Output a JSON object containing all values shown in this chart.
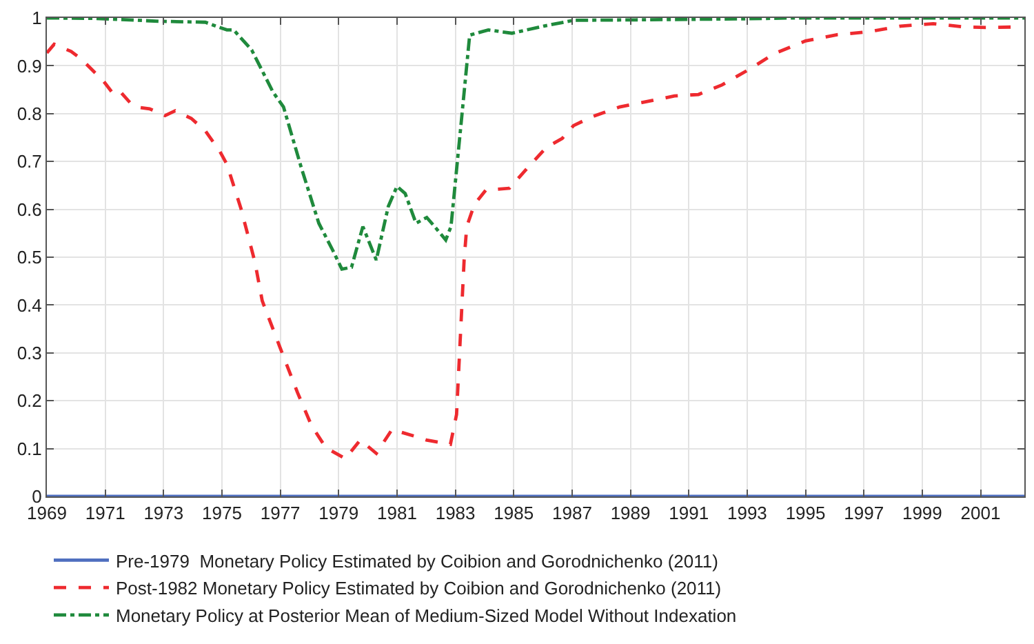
{
  "chart_data": {
    "type": "line",
    "xlim": [
      1969,
      2002.5
    ],
    "ylim": [
      0,
      1
    ],
    "xticks": [
      1969,
      1971,
      1973,
      1975,
      1977,
      1979,
      1981,
      1983,
      1985,
      1987,
      1989,
      1991,
      1993,
      1995,
      1997,
      1999,
      2001
    ],
    "yticks": [
      0,
      0.1,
      0.2,
      0.3,
      0.4,
      0.5,
      0.6,
      0.7,
      0.8,
      0.9,
      1
    ],
    "grid": true,
    "legend": "bottom",
    "marker": "none",
    "series": [
      {
        "name": "Pre-1979  Monetary Policy Estimated by Coibion and Gorodnichenko (2011)",
        "color": "#4f6fbf",
        "line_style": "solid",
        "x": [
          1969,
          1985,
          2002.5
        ],
        "values": [
          0,
          0,
          0
        ]
      },
      {
        "name": "Post-1982 Monetary Policy Estimated by Coibion and Gorodnichenko (2011)",
        "color": "#ee2a2f",
        "line_style": "dashed",
        "x": [
          1969,
          1969.25,
          1969.83,
          1970.18,
          1970.94,
          1971.29,
          1971.53,
          1971.88,
          1972.05,
          1972.52,
          1973.05,
          1973.4,
          1973.7,
          1973.95,
          1974.43,
          1974.93,
          1975.17,
          1975.65,
          1976.13,
          1976.38,
          1976.98,
          1977.59,
          1978.07,
          1978.56,
          1979.23,
          1979.74,
          1980.29,
          1980.83,
          1981.65,
          1982.0,
          1982.83,
          1983.04,
          1983.3,
          1983.39,
          1983.65,
          1984.04,
          1984.85,
          1985.48,
          1986.11,
          1986.66,
          1987.05,
          1987.7,
          1988.63,
          1989.55,
          1990.51,
          1991.33,
          1992.14,
          1993.11,
          1993.92,
          1995.0,
          1996.08,
          1997.16,
          1998.27,
          1999.38,
          2000.46,
          2001.18,
          2002.1
        ],
        "values": [
          0.927,
          0.945,
          0.93,
          0.914,
          0.868,
          0.84,
          0.845,
          0.821,
          0.814,
          0.81,
          0.796,
          0.806,
          0.797,
          0.79,
          0.764,
          0.721,
          0.694,
          0.602,
          0.49,
          0.409,
          0.313,
          0.217,
          0.148,
          0.102,
          0.079,
          0.118,
          0.09,
          0.14,
          0.125,
          0.118,
          0.109,
          0.171,
          0.494,
          0.564,
          0.61,
          0.64,
          0.644,
          0.687,
          0.729,
          0.748,
          0.775,
          0.794,
          0.814,
          0.825,
          0.837,
          0.84,
          0.86,
          0.894,
          0.925,
          0.952,
          0.965,
          0.971,
          0.983,
          0.988,
          0.981,
          0.98,
          0.981
        ]
      },
      {
        "name": "Monetary Policy at Posterior Mean of Medium-Sized Model Without Indexation",
        "color": "#1f8a3c",
        "line_style": "dashdot",
        "x": [
          1969,
          1970.65,
          1972.87,
          1974.43,
          1974.97,
          1975.17,
          1975.4,
          1976.02,
          1976.75,
          1977.11,
          1977.72,
          1978.32,
          1978.81,
          1979.11,
          1979.44,
          1979.83,
          1980.29,
          1980.7,
          1981.0,
          1981.28,
          1981.65,
          1982.02,
          1982.29,
          1982.67,
          1982.85,
          1983.22,
          1983.49,
          1984.13,
          1984.94,
          1986.03,
          1987.05,
          1989.18,
          1992.84,
          1994.64,
          2002.5
        ],
        "values": [
          1.0,
          0.999,
          0.993,
          0.991,
          0.979,
          0.975,
          0.975,
          0.933,
          0.845,
          0.814,
          0.687,
          0.571,
          0.513,
          0.475,
          0.479,
          0.564,
          0.494,
          0.606,
          0.648,
          0.633,
          0.571,
          0.583,
          0.564,
          0.536,
          0.564,
          0.794,
          0.964,
          0.975,
          0.968,
          0.983,
          0.995,
          0.996,
          0.998,
          1.0,
          1.0
        ]
      }
    ]
  }
}
